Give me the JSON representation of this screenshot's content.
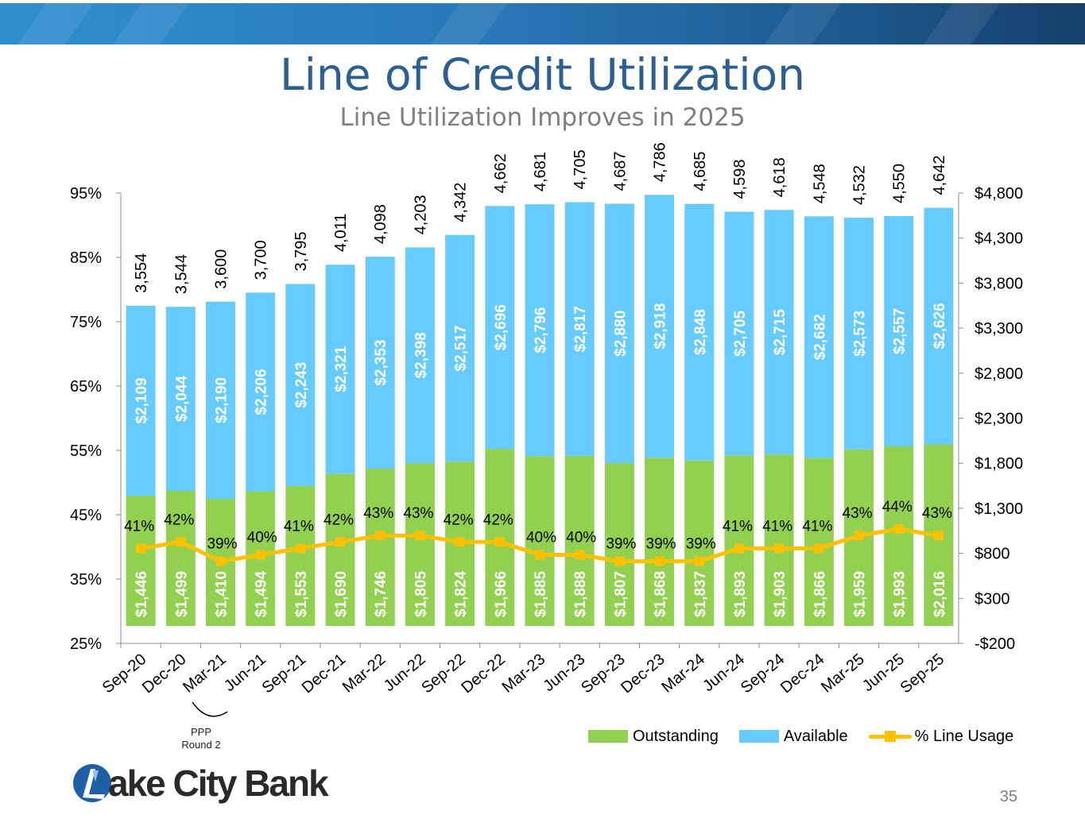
{
  "slide": {
    "title": "Line of Credit Utilization",
    "subtitle": "Line Utilization Improves in 2025",
    "page_number": "35",
    "note_line1": "PPP",
    "note_line2": "Round 2",
    "logo_text": "ake City Bank",
    "logo_icon": "lake-city-bank-logo-icon"
  },
  "legend": {
    "outstanding": "Outstanding",
    "available": "Available",
    "usage": "% Line Usage"
  },
  "colors": {
    "outstanding": "#92d050",
    "available": "#66ccff",
    "usage": "#ffc000",
    "title": "#2c5f94",
    "banner": "#1d5c93"
  },
  "chart_data": {
    "type": "bar",
    "stacked": true,
    "categories": [
      "Sep-20",
      "Dec-20",
      "Mar-21",
      "Jun-21",
      "Sep-21",
      "Dec-21",
      "Mar-22",
      "Jun-22",
      "Sep-22",
      "Dec-22",
      "Mar-23",
      "Jun-23",
      "Sep-23",
      "Dec-23",
      "Mar-24",
      "Jun-24",
      "Sep-24",
      "Dec-24",
      "Mar-25",
      "Jun-25",
      "Sep-25"
    ],
    "series": [
      {
        "name": "Outstanding",
        "axis": "right",
        "values": [
          1446,
          1499,
          1410,
          1494,
          1553,
          1690,
          1746,
          1805,
          1824,
          1966,
          1885,
          1888,
          1807,
          1868,
          1837,
          1893,
          1903,
          1866,
          1959,
          1993,
          2016
        ],
        "labels": [
          "$1,446",
          "$1,499",
          "$1,410",
          "$1,494",
          "$1,553",
          "$1,690",
          "$1,746",
          "$1,805",
          "$1,824",
          "$1,966",
          "$1,885",
          "$1,888",
          "$1,807",
          "$1,868",
          "$1,837",
          "$1,893",
          "$1,903",
          "$1,866",
          "$1,959",
          "$1,993",
          "$2,016"
        ]
      },
      {
        "name": "Available",
        "axis": "right",
        "values": [
          2109,
          2044,
          2190,
          2206,
          2243,
          2321,
          2353,
          2398,
          2517,
          2696,
          2796,
          2817,
          2880,
          2918,
          2848,
          2705,
          2715,
          2682,
          2573,
          2557,
          2626
        ],
        "labels": [
          "$2,109",
          "$2,044",
          "$2,190",
          "$2,206",
          "$2,243",
          "$2,321",
          "$2,353",
          "$2,398",
          "$2,517",
          "$2,696",
          "$2,796",
          "$2,817",
          "$2,880",
          "$2,918",
          "$2,848",
          "$2,705",
          "$2,715",
          "$2,682",
          "$2,573",
          "$2,557",
          "$2,626"
        ]
      },
      {
        "name": "% Line Usage",
        "type": "line",
        "axis": "left",
        "values": [
          41,
          42,
          39,
          40,
          41,
          42,
          43,
          43,
          42,
          42,
          40,
          40,
          39,
          39,
          39,
          41,
          41,
          41,
          43,
          44,
          43
        ],
        "labels": [
          "41%",
          "42%",
          "39%",
          "40%",
          "41%",
          "42%",
          "43%",
          "43%",
          "42%",
          "42%",
          "40%",
          "40%",
          "39%",
          "39%",
          "39%",
          "41%",
          "41%",
          "41%",
          "43%",
          "44%",
          "43%"
        ]
      }
    ],
    "totals": [
      "3,554",
      "3,544",
      "3,600",
      "3,700",
      "3,795",
      "4,011",
      "4,098",
      "4,203",
      "4,342",
      "4,662",
      "4,681",
      "4,705",
      "4,687",
      "4,786",
      "4,685",
      "4,598",
      "4,618",
      "4,548",
      "4,532",
      "4,550",
      "4,642"
    ],
    "y_left": {
      "min": 25,
      "max": 95,
      "ticks": [
        "95%",
        "85%",
        "75%",
        "65%",
        "55%",
        "45%",
        "35%",
        "25%"
      ]
    },
    "y_right": {
      "min": -200,
      "max": 4800,
      "ticks": [
        "$4,800",
        "$4,300",
        "$3,800",
        "$3,300",
        "$2,800",
        "$2,300",
        "$1,800",
        "$1,300",
        "$800",
        "$300",
        "-$200"
      ]
    },
    "legend_position": "bottom-right",
    "grid": false
  }
}
